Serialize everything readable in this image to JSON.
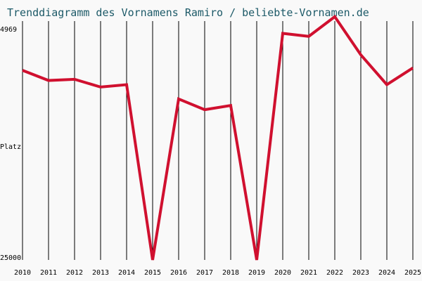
{
  "chart_data": {
    "type": "line",
    "title": "Trenddiagramm des Vornamens Ramiro / beliebte-Vornamen.de",
    "xlabel": "",
    "ylabel": "Platz",
    "y_axis_inverted": true,
    "ylim": [
      4969,
      25000
    ],
    "y_tick_labels": [
      "4969",
      "25000"
    ],
    "x": [
      2010,
      2011,
      2012,
      2013,
      2014,
      2015,
      2016,
      2017,
      2018,
      2019,
      2020,
      2021,
      2022,
      2023,
      2024,
      2025
    ],
    "x_tick_labels": [
      "2010",
      "2011",
      "2012",
      "2013",
      "2014",
      "2015",
      "2016",
      "2017",
      "2018",
      "2019",
      "2020",
      "2021",
      "2022",
      "2023",
      "2024",
      "2025"
    ],
    "series": [
      {
        "values": [
          9100,
          9950,
          9850,
          10500,
          10300,
          25000,
          11500,
          12400,
          12050,
          25000,
          6000,
          6250,
          4600,
          7800,
          10300,
          8900
        ],
        "color": "#d0102f"
      }
    ],
    "grid": "vertical lines at each year",
    "background": "#f9f9f9"
  }
}
